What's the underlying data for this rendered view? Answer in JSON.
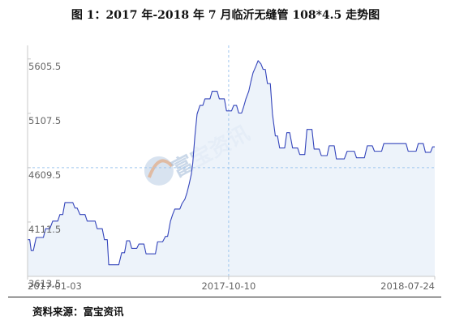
{
  "title": "图 1：2017 年-2018 年 7 月临沂无缝管 108*4.5 走势图",
  "source": "资料来源：富宝资讯",
  "watermark": "富宝资讯",
  "colors": {
    "line": "#3344bb",
    "fill": "#eaf1f9",
    "axis": "#c8c8c8",
    "grid_dash": "#9fc6ee"
  },
  "chart_data": {
    "type": "area",
    "title": "",
    "xlabel": "",
    "ylabel": "",
    "xlim": [
      "2017-01-03",
      "2018-07-24"
    ],
    "ylim": [
      3613.5,
      5730
    ],
    "x_ticks": [
      "2017-01-03",
      "2017-10-10",
      "2018-07-24"
    ],
    "y_ticks": [
      "3613.5",
      "4111.5",
      "4609.5",
      "5107.5",
      "5605.5"
    ],
    "grid": "vertical dashed line at 2017-10-10, horizontal dashed line at 4609.5",
    "series": [
      {
        "name": "",
        "points": [
          [
            "2017-01-03",
            3950
          ],
          [
            "2017-01-06",
            3950
          ],
          [
            "2017-01-08",
            3850
          ],
          [
            "2017-01-11",
            3850
          ],
          [
            "2017-01-15",
            3970
          ],
          [
            "2017-01-25",
            3970
          ],
          [
            "2017-01-28",
            4050
          ],
          [
            "2017-02-03",
            4050
          ],
          [
            "2017-02-07",
            4120
          ],
          [
            "2017-02-14",
            4120
          ],
          [
            "2017-02-17",
            4180
          ],
          [
            "2017-02-21",
            4180
          ],
          [
            "2017-02-24",
            4290
          ],
          [
            "2017-03-07",
            4290
          ],
          [
            "2017-03-10",
            4240
          ],
          [
            "2017-03-13",
            4240
          ],
          [
            "2017-03-17",
            4180
          ],
          [
            "2017-03-24",
            4180
          ],
          [
            "2017-03-27",
            4120
          ],
          [
            "2017-04-07",
            4120
          ],
          [
            "2017-04-10",
            4050
          ],
          [
            "2017-04-17",
            4050
          ],
          [
            "2017-04-20",
            3950
          ],
          [
            "2017-04-24",
            3950
          ],
          [
            "2017-04-26",
            3720
          ],
          [
            "2017-05-10",
            3720
          ],
          [
            "2017-05-14",
            3830
          ],
          [
            "2017-05-18",
            3830
          ],
          [
            "2017-05-21",
            3940
          ],
          [
            "2017-05-25",
            3940
          ],
          [
            "2017-05-28",
            3870
          ],
          [
            "2017-06-04",
            3870
          ],
          [
            "2017-06-07",
            3910
          ],
          [
            "2017-06-14",
            3910
          ],
          [
            "2017-06-17",
            3820
          ],
          [
            "2017-06-30",
            3820
          ],
          [
            "2017-07-03",
            3930
          ],
          [
            "2017-07-10",
            3930
          ],
          [
            "2017-07-14",
            3980
          ],
          [
            "2017-07-17",
            3980
          ],
          [
            "2017-07-21",
            4120
          ],
          [
            "2017-07-24",
            4180
          ],
          [
            "2017-07-27",
            4230
          ],
          [
            "2017-08-03",
            4230
          ],
          [
            "2017-08-06",
            4280
          ],
          [
            "2017-08-10",
            4320
          ],
          [
            "2017-08-13",
            4380
          ],
          [
            "2017-08-16",
            4460
          ],
          [
            "2017-08-19",
            4550
          ],
          [
            "2017-08-21",
            4650
          ],
          [
            "2017-08-24",
            4900
          ],
          [
            "2017-08-27",
            5100
          ],
          [
            "2017-08-31",
            5180
          ],
          [
            "2017-09-04",
            5180
          ],
          [
            "2017-09-07",
            5240
          ],
          [
            "2017-09-14",
            5240
          ],
          [
            "2017-09-17",
            5310
          ],
          [
            "2017-09-24",
            5310
          ],
          [
            "2017-09-27",
            5240
          ],
          [
            "2017-10-04",
            5240
          ],
          [
            "2017-10-07",
            5130
          ],
          [
            "2017-10-14",
            5130
          ],
          [
            "2017-10-17",
            5180
          ],
          [
            "2017-10-21",
            5180
          ],
          [
            "2017-10-24",
            5110
          ],
          [
            "2017-10-28",
            5110
          ],
          [
            "2017-10-31",
            5170
          ],
          [
            "2017-11-03",
            5240
          ],
          [
            "2017-11-07",
            5310
          ],
          [
            "2017-11-10",
            5400
          ],
          [
            "2017-11-13",
            5480
          ],
          [
            "2017-11-17",
            5540
          ],
          [
            "2017-11-20",
            5590
          ],
          [
            "2017-11-24",
            5560
          ],
          [
            "2017-11-27",
            5510
          ],
          [
            "2017-11-30",
            5510
          ],
          [
            "2017-12-03",
            5380
          ],
          [
            "2017-12-07",
            5380
          ],
          [
            "2017-12-10",
            5100
          ],
          [
            "2017-12-14",
            4900
          ],
          [
            "2017-12-17",
            4900
          ],
          [
            "2017-12-20",
            4790
          ],
          [
            "2017-12-27",
            4790
          ],
          [
            "2017-12-30",
            4930
          ],
          [
            "2018-01-03",
            4930
          ],
          [
            "2018-01-07",
            4790
          ],
          [
            "2018-01-14",
            4790
          ],
          [
            "2018-01-17",
            4730
          ],
          [
            "2018-01-24",
            4730
          ],
          [
            "2018-01-27",
            4960
          ],
          [
            "2018-02-03",
            4960
          ],
          [
            "2018-02-06",
            4780
          ],
          [
            "2018-02-13",
            4780
          ],
          [
            "2018-02-16",
            4720
          ],
          [
            "2018-02-24",
            4720
          ],
          [
            "2018-02-27",
            4810
          ],
          [
            "2018-03-06",
            4810
          ],
          [
            "2018-03-09",
            4690
          ],
          [
            "2018-03-20",
            4690
          ],
          [
            "2018-03-24",
            4760
          ],
          [
            "2018-04-03",
            4760
          ],
          [
            "2018-04-06",
            4700
          ],
          [
            "2018-04-17",
            4700
          ],
          [
            "2018-04-21",
            4810
          ],
          [
            "2018-04-28",
            4810
          ],
          [
            "2018-05-01",
            4760
          ],
          [
            "2018-05-11",
            4760
          ],
          [
            "2018-05-14",
            4830
          ],
          [
            "2018-06-14",
            4830
          ],
          [
            "2018-06-17",
            4760
          ],
          [
            "2018-06-28",
            4760
          ],
          [
            "2018-07-01",
            4830
          ],
          [
            "2018-07-08",
            4830
          ],
          [
            "2018-07-11",
            4750
          ],
          [
            "2018-07-18",
            4750
          ],
          [
            "2018-07-21",
            4800
          ],
          [
            "2018-07-24",
            4800
          ]
        ]
      }
    ]
  }
}
